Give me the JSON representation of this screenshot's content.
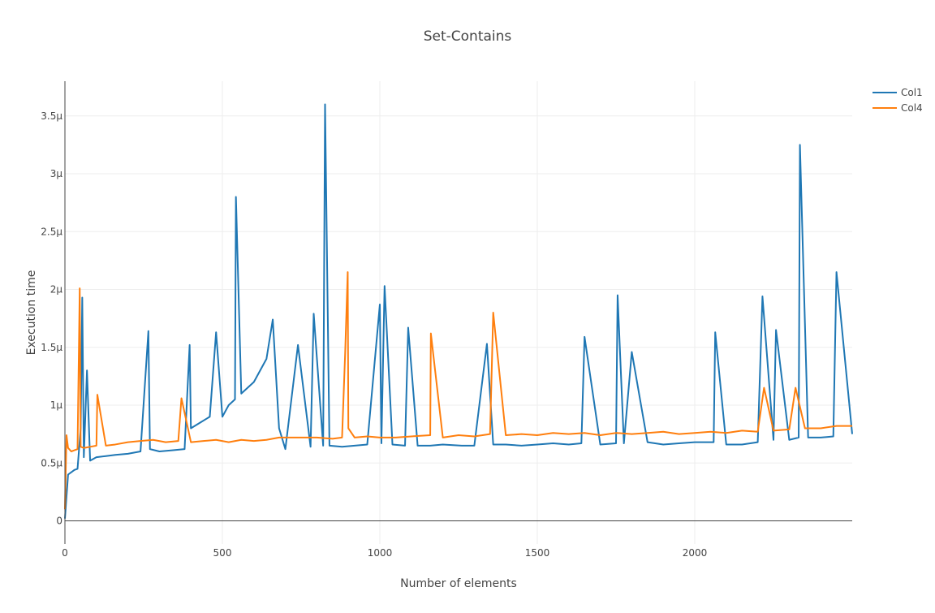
{
  "chart_data": {
    "type": "line",
    "title": "Set-Contains",
    "xlabel": "Number of elements",
    "ylabel": "Execution time",
    "xlim": [
      0,
      2500
    ],
    "ylim": [
      -0.2,
      3.8
    ],
    "x_ticks": [
      0,
      500,
      1000,
      1500,
      2000
    ],
    "x_tick_labels": [
      "0",
      "500",
      "1000",
      "1500",
      "2000"
    ],
    "y_ticks": [
      0,
      0.5,
      1,
      1.5,
      2,
      2.5,
      3,
      3.5
    ],
    "y_tick_labels": [
      "0",
      "0.5μ",
      "1μ",
      "1.5μ",
      "2μ",
      "2.5μ",
      "3μ",
      "3.5μ"
    ],
    "y_unit": "μs",
    "grid": true,
    "legend_position": "top-right",
    "series": [
      {
        "name": "Col1",
        "color": "#1f77b4",
        "x": [
          0,
          10,
          20,
          30,
          40,
          50,
          55,
          60,
          70,
          80,
          100,
          130,
          160,
          200,
          240,
          265,
          270,
          300,
          340,
          380,
          396,
          400,
          430,
          460,
          480,
          500,
          520,
          540,
          543,
          560,
          580,
          600,
          620,
          640,
          660,
          680,
          700,
          740,
          780,
          790,
          820,
          826,
          840,
          880,
          920,
          960,
          1000,
          1005,
          1015,
          1040,
          1080,
          1090,
          1120,
          1160,
          1200,
          1260,
          1300,
          1340,
          1360,
          1400,
          1450,
          1500,
          1550,
          1600,
          1640,
          1650,
          1700,
          1750,
          1755,
          1775,
          1800,
          1850,
          1900,
          1950,
          2000,
          2060,
          2065,
          2100,
          2150,
          2200,
          2215,
          2250,
          2258,
          2300,
          2330,
          2334,
          2360,
          2400,
          2440,
          2450,
          2500
        ],
        "y": [
          0.02,
          0.4,
          0.42,
          0.44,
          0.45,
          0.8,
          1.93,
          0.55,
          1.3,
          0.52,
          0.55,
          0.56,
          0.57,
          0.58,
          0.6,
          1.64,
          0.62,
          0.6,
          0.61,
          0.62,
          1.52,
          0.8,
          0.85,
          0.9,
          1.63,
          0.9,
          1.0,
          1.05,
          2.8,
          1.1,
          1.15,
          1.2,
          1.3,
          1.4,
          1.74,
          0.8,
          0.62,
          1.52,
          0.64,
          1.79,
          0.65,
          3.6,
          0.65,
          0.64,
          0.65,
          0.66,
          1.87,
          0.67,
          2.03,
          0.66,
          0.65,
          1.67,
          0.65,
          0.65,
          0.66,
          0.65,
          0.65,
          1.53,
          0.66,
          0.66,
          0.65,
          0.66,
          0.67,
          0.66,
          0.67,
          1.59,
          0.66,
          0.67,
          1.95,
          0.67,
          1.46,
          0.68,
          0.66,
          0.67,
          0.68,
          0.68,
          1.63,
          0.66,
          0.66,
          0.68,
          1.94,
          0.7,
          1.65,
          0.7,
          0.72,
          3.25,
          0.72,
          0.72,
          0.73,
          2.15,
          0.75
        ]
      },
      {
        "name": "Col4",
        "color": "#ff7f0e",
        "x": [
          0,
          5,
          10,
          20,
          30,
          40,
          47,
          50,
          60,
          80,
          100,
          103,
          130,
          160,
          200,
          240,
          280,
          320,
          360,
          370,
          400,
          440,
          480,
          520,
          560,
          600,
          640,
          680,
          700,
          750,
          800,
          850,
          880,
          890,
          898,
          900,
          920,
          960,
          1000,
          1050,
          1100,
          1160,
          1162,
          1200,
          1250,
          1300,
          1350,
          1360,
          1400,
          1450,
          1500,
          1550,
          1600,
          1650,
          1700,
          1750,
          1800,
          1850,
          1900,
          1950,
          2000,
          2050,
          2100,
          2150,
          2200,
          2220,
          2250,
          2300,
          2320,
          2350,
          2400,
          2450,
          2500
        ],
        "y": [
          0.1,
          0.74,
          0.63,
          0.6,
          0.61,
          0.62,
          2.01,
          0.64,
          0.63,
          0.64,
          0.65,
          1.09,
          0.65,
          0.66,
          0.68,
          0.69,
          0.7,
          0.68,
          0.69,
          1.06,
          0.68,
          0.69,
          0.7,
          0.68,
          0.7,
          0.69,
          0.7,
          0.72,
          0.72,
          0.72,
          0.72,
          0.71,
          0.72,
          1.46,
          2.15,
          0.8,
          0.72,
          0.73,
          0.72,
          0.72,
          0.73,
          0.74,
          1.62,
          0.72,
          0.74,
          0.73,
          0.75,
          1.8,
          0.74,
          0.75,
          0.74,
          0.76,
          0.75,
          0.76,
          0.74,
          0.76,
          0.75,
          0.76,
          0.77,
          0.75,
          0.76,
          0.77,
          0.76,
          0.78,
          0.77,
          1.15,
          0.78,
          0.79,
          1.15,
          0.8,
          0.8,
          0.82,
          0.82
        ]
      }
    ]
  }
}
